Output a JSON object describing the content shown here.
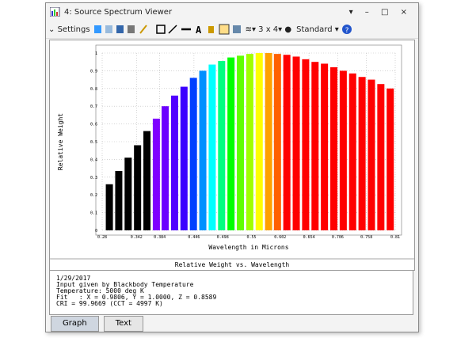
{
  "window": {
    "title": "4: Source Spectrum Viewer"
  },
  "toolbar": {
    "settings": "Settings",
    "layout": "3 x 4",
    "style": "Standard"
  },
  "chart_data": {
    "type": "bar",
    "subtitle": "Relative Weight vs. Wavelength",
    "x_label": "Wavelength in Microns",
    "y_label": "Relative Weight",
    "x": [
      0.293,
      0.31,
      0.327,
      0.344,
      0.361,
      0.378,
      0.394,
      0.411,
      0.428,
      0.445,
      0.462,
      0.479,
      0.496,
      0.513,
      0.53,
      0.547,
      0.564,
      0.581,
      0.597,
      0.614,
      0.631,
      0.648,
      0.665,
      0.682,
      0.699,
      0.716,
      0.733,
      0.75,
      0.767,
      0.784,
      0.801
    ],
    "values": [
      0.26,
      0.335,
      0.41,
      0.48,
      0.56,
      0.63,
      0.7,
      0.76,
      0.81,
      0.86,
      0.9,
      0.935,
      0.955,
      0.975,
      0.985,
      0.995,
      1.0,
      1.0,
      0.995,
      0.99,
      0.98,
      0.965,
      0.95,
      0.94,
      0.92,
      0.9,
      0.885,
      0.865,
      0.85,
      0.825,
      0.8
    ],
    "colors": [
      "#000000",
      "#000000",
      "#000000",
      "#000000",
      "#000000",
      "#7f00ff",
      "#6a00ff",
      "#5000ff",
      "#3a00ff",
      "#0040ff",
      "#0090ff",
      "#00ffff",
      "#00ff80",
      "#00ff00",
      "#60ff00",
      "#a0ff00",
      "#ffff00",
      "#ffa000",
      "#ff6000",
      "#ff0000",
      "#ff0000",
      "#ff0000",
      "#ff0000",
      "#ff0000",
      "#ff0000",
      "#ff0000",
      "#ff0000",
      "#ff0000",
      "#ff0000",
      "#ff0000",
      "#ff0000"
    ],
    "xlim": [
      0.28,
      0.81
    ],
    "xticks": [
      0.28,
      0.342,
      0.384,
      0.446,
      0.498,
      0.55,
      0.602,
      0.654,
      0.706,
      0.758,
      0.81
    ],
    "ylim": [
      0,
      1
    ],
    "yticks": [
      0,
      0.1,
      0.2,
      0.3,
      0.4,
      0.5,
      0.6,
      0.7,
      0.8,
      0.9,
      1
    ],
    "grid": true
  },
  "text_panel": {
    "lines": [
      "1/29/2017",
      "Input given by Blackbody Temperature",
      "Temperature: 5000 deg K",
      "Fit   : X = 0.9806, Y = 1.0000, Z = 0.8589",
      "CRI = 99.9669 (CCT = 4997 K)"
    ]
  },
  "tabs": [
    "Graph",
    "Text"
  ]
}
